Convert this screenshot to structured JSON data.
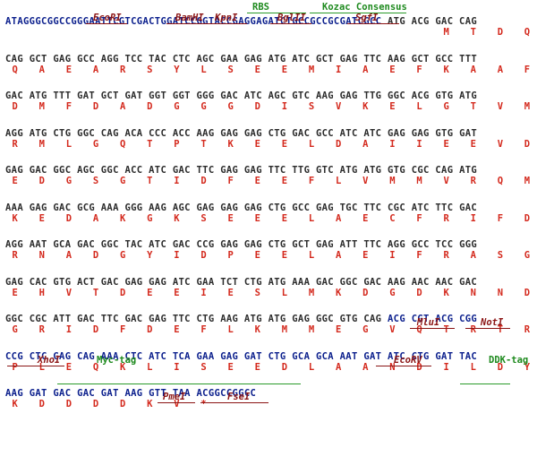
{
  "blocks": [
    {
      "nt": [
        "ATAGGGCGGCCGGGAATTCGTCGACTGGATCCGGTACCGAGGAGATCTGCCGCCGCGATCGCC",
        " ATG",
        " ACG",
        " GAC",
        " CAG"
      ],
      "aa": [
        "",
        "M",
        "T",
        "D",
        "Q"
      ]
    },
    {
      "nt": [
        "CAG",
        "GCT",
        "GAG",
        "GCC",
        "AGG",
        "TCC",
        "TAC",
        "CTC",
        "AGC",
        "GAA",
        "GAG",
        "ATG",
        "ATC",
        "GCT",
        "GAG",
        "TTC",
        "AAG",
        "GCT",
        "GCC",
        "TTT"
      ],
      "aa": [
        "Q",
        "A",
        "E",
        "A",
        "R",
        "S",
        "Y",
        "L",
        "S",
        "E",
        "E",
        "M",
        "I",
        "A",
        "E",
        "F",
        "K",
        "A",
        "A",
        "F"
      ]
    },
    {
      "nt": [
        "GAC",
        "ATG",
        "TTT",
        "GAT",
        "GCT",
        "GAT",
        "GGT",
        "GGT",
        "GGG",
        "GAC",
        "ATC",
        "AGC",
        "GTC",
        "AAG",
        "GAG",
        "TTG",
        "GGC",
        "ACG",
        "GTG",
        "ATG"
      ],
      "aa": [
        "D",
        "M",
        "F",
        "D",
        "A",
        "D",
        "G",
        "G",
        "G",
        "D",
        "I",
        "S",
        "V",
        "K",
        "E",
        "L",
        "G",
        "T",
        "V",
        "M"
      ]
    },
    {
      "nt": [
        "AGG",
        "ATG",
        "CTG",
        "GGC",
        "CAG",
        "ACA",
        "CCC",
        "ACC",
        "AAG",
        "GAG",
        "GAG",
        "CTG",
        "GAC",
        "GCC",
        "ATC",
        "ATC",
        "GAG",
        "GAG",
        "GTG",
        "GAT"
      ],
      "aa": [
        "R",
        "M",
        "L",
        "G",
        "Q",
        "T",
        "P",
        "T",
        "K",
        "E",
        "E",
        "L",
        "D",
        "A",
        "I",
        "I",
        "E",
        "E",
        "V",
        "D"
      ]
    },
    {
      "nt": [
        "GAG",
        "GAC",
        "GGC",
        "AGC",
        "GGC",
        "ACC",
        "ATC",
        "GAC",
        "TTC",
        "GAG",
        "GAG",
        "TTC",
        "TTG",
        "GTC",
        "ATG",
        "ATG",
        "GTG",
        "CGC",
        "CAG",
        "ATG"
      ],
      "aa": [
        "E",
        "D",
        "G",
        "S",
        "G",
        "T",
        "I",
        "D",
        "F",
        "E",
        "E",
        "F",
        "L",
        "V",
        "M",
        "M",
        "V",
        "R",
        "Q",
        "M"
      ]
    },
    {
      "nt": [
        "AAA",
        "GAG",
        "GAC",
        "GCG",
        "AAA",
        "GGG",
        "AAG",
        "AGC",
        "GAG",
        "GAG",
        "GAG",
        "CTG",
        "GCC",
        "GAG",
        "TGC",
        "TTC",
        "CGC",
        "ATC",
        "TTC",
        "GAC"
      ],
      "aa": [
        "K",
        "E",
        "D",
        "A",
        "K",
        "G",
        "K",
        "S",
        "E",
        "E",
        "E",
        "L",
        "A",
        "E",
        "C",
        "F",
        "R",
        "I",
        "F",
        "D"
      ]
    },
    {
      "nt": [
        "AGG",
        "AAT",
        "GCA",
        "GAC",
        "GGC",
        "TAC",
        "ATC",
        "GAC",
        "CCG",
        "GAG",
        "GAG",
        "CTG",
        "GCT",
        "GAG",
        "ATT",
        "TTC",
        "AGG",
        "GCC",
        "TCC",
        "GGG"
      ],
      "aa": [
        "R",
        "N",
        "A",
        "D",
        "G",
        "Y",
        "I",
        "D",
        "P",
        "E",
        "E",
        "L",
        "A",
        "E",
        "I",
        "F",
        "R",
        "A",
        "S",
        "G"
      ]
    },
    {
      "nt": [
        "GAG",
        "CAC",
        "GTG",
        "ACT",
        "GAC",
        "GAG",
        "GAG",
        "ATC",
        "GAA",
        "TCT",
        "CTG",
        "ATG",
        "AAA",
        "GAC",
        "GGC",
        "GAC",
        "AAG",
        "AAC",
        "AAC",
        "GAC"
      ],
      "aa": [
        "E",
        "H",
        "V",
        "T",
        "D",
        "E",
        "E",
        "I",
        "E",
        "S",
        "L",
        "M",
        "K",
        "D",
        "G",
        "D",
        "K",
        "N",
        "N",
        "D"
      ]
    },
    {
      "nt": [
        "GGC",
        "CGC",
        "ATT",
        "GAC",
        "TTC",
        "GAC",
        "GAG",
        "TTC",
        "CTG",
        "AAG",
        "ATG",
        "ATG",
        "GAG",
        "GGC",
        "GTG",
        "CAG",
        "ACG",
        "CGT",
        "ACG",
        "CGG"
      ],
      "aa": [
        "G",
        "R",
        "I",
        "D",
        "F",
        "D",
        "E",
        "F",
        "L",
        "K",
        "M",
        "M",
        "E",
        "G",
        "V",
        "Q",
        "T",
        "R",
        "T",
        "R"
      ]
    },
    {
      "nt": [
        "CCG",
        "CTC",
        "GAG",
        "CAG",
        "AAA",
        "CTC",
        "ATC",
        "TCA",
        "GAA",
        "GAG",
        "GAT",
        "CTG",
        "GCA",
        "GCA",
        "AAT",
        "GAT",
        "ATC",
        "CTG",
        "GAT",
        "TAC"
      ],
      "aa": [
        "P",
        "L",
        "E",
        "Q",
        "K",
        "L",
        "I",
        "S",
        "E",
        "E",
        "D",
        "L",
        "A",
        "A",
        "N",
        "D",
        "I",
        "L",
        "D",
        "Y"
      ]
    },
    {
      "nt": [
        "AAG",
        "GAT",
        "GAC",
        "GAC",
        "GAT",
        "AAG",
        "GTT",
        "TAA",
        "ACGGCCGGCC"
      ],
      "aa": [
        "K",
        "D",
        "D",
        "D",
        "D",
        "K",
        "V",
        "*",
        ""
      ]
    }
  ],
  "sites": {
    "ecori": "EcoRI",
    "bamhi": "BamHI",
    "kpni": "KpnI",
    "bglii": "BglII",
    "sgfi": "SgfI",
    "mlui": "MluI",
    "noti": "NotI",
    "xhoi": "XhoI",
    "ecorv": "EcoRV",
    "pmei": "PmeI",
    "fsei": "FseI"
  },
  "features": {
    "rbs": "RBS",
    "kozac": "Kozac Consensus",
    "myc": "Myc-tag",
    "ddk": "DDK-tag"
  },
  "colors": {
    "vector_sequence": "#2b2b2b",
    "insert_sequence": "#0a1e8c",
    "amino_acid": "#d42a1e",
    "restriction_site": "#8b1414",
    "feature_label": "#1e8a1e"
  }
}
